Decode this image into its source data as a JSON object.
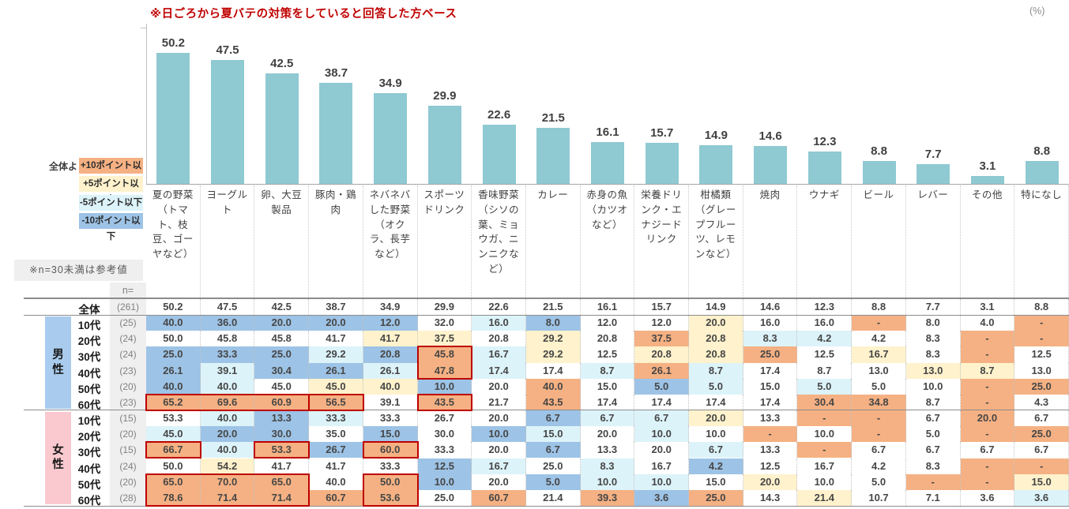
{
  "title": "※日ごろから夏バテの対策をしていると回答した方ベース",
  "unit_label": "(%)",
  "note": "※n=30未満は参考値",
  "n_header": "n=",
  "legend": {
    "prefix": "全体より",
    "items": [
      {
        "label": "+10ポイント以上",
        "color": "#F5B183"
      },
      {
        "label": "+5ポイント以上",
        "color": "#FFF2CC"
      },
      {
        "label": "-5ポイント以下",
        "color": "#DCF3F9"
      },
      {
        "label": "-10ポイント以下",
        "color": "#9DC3E6"
      }
    ]
  },
  "chart_data": {
    "type": "bar",
    "title": "※日ごろから夏バテの対策をしていると回答した方ベース",
    "unit": "%",
    "bar_color": "#8FC9D2",
    "ylim": [
      0,
      60
    ],
    "grid": false,
    "categories": [
      "夏の野菜（トマト、枝豆、ゴーヤなど）",
      "ヨーグルト",
      "卵、大豆製品",
      "豚肉・鶏肉",
      "ネバネバした野菜（オクラ、長芋など）",
      "スポーツドリンク",
      "香味野菜（シソの葉、ミョウガ、ニンニクなど）",
      "カレー",
      "赤身の魚（カツオなど）",
      "栄養ドリンク・エナジードリンク",
      "柑橘類（グレープフルーツ、レモンなど）",
      "焼肉",
      "ウナギ",
      "ビール",
      "レバー",
      "その他",
      "特になし"
    ],
    "values": [
      50.2,
      47.5,
      42.5,
      38.7,
      34.9,
      29.9,
      22.6,
      21.5,
      16.1,
      15.7,
      14.9,
      14.6,
      12.3,
      8.8,
      7.7,
      3.1,
      8.8
    ]
  },
  "table": {
    "cell_colors": {
      "w": "#FFFFFF",
      "o": "#F5B183",
      "y": "#FFF2CC",
      "c": "#DCF3F9",
      "b": "#9DC3E6"
    },
    "groups": [
      {
        "name": "男性",
        "color": "#A9CCEE"
      },
      {
        "name": "女性",
        "color": "#F9C9CF"
      }
    ],
    "rows": [
      {
        "group": "",
        "label": "全体",
        "n": "(261)",
        "values": [
          "50.2",
          "47.5",
          "42.5",
          "38.7",
          "34.9",
          "29.9",
          "22.6",
          "21.5",
          "16.1",
          "15.7",
          "14.9",
          "14.6",
          "12.3",
          "8.8",
          "7.7",
          "3.1",
          "8.8"
        ],
        "colors": [
          "w",
          "w",
          "w",
          "w",
          "w",
          "w",
          "w",
          "w",
          "w",
          "w",
          "w",
          "w",
          "w",
          "w",
          "w",
          "w",
          "w"
        ]
      },
      {
        "group": "男性",
        "label": "10代",
        "n": "(25)",
        "values": [
          "40.0",
          "36.0",
          "20.0",
          "20.0",
          "12.0",
          "32.0",
          "16.0",
          "8.0",
          "12.0",
          "12.0",
          "20.0",
          "16.0",
          "16.0",
          "-",
          "8.0",
          "4.0",
          "-"
        ],
        "colors": [
          "b",
          "b",
          "b",
          "b",
          "b",
          "w",
          "c",
          "b",
          "w",
          "w",
          "y",
          "w",
          "w",
          "o",
          "w",
          "w",
          "o"
        ]
      },
      {
        "group": "男性",
        "label": "20代",
        "n": "(24)",
        "values": [
          "50.0",
          "45.8",
          "45.8",
          "41.7",
          "41.7",
          "37.5",
          "20.8",
          "29.2",
          "20.8",
          "37.5",
          "20.8",
          "8.3",
          "4.2",
          "4.2",
          "8.3",
          "-",
          "-"
        ],
        "colors": [
          "w",
          "w",
          "w",
          "w",
          "y",
          "y",
          "w",
          "y",
          "w",
          "o",
          "y",
          "c",
          "c",
          "w",
          "w",
          "o",
          "o"
        ]
      },
      {
        "group": "男性",
        "label": "30代",
        "n": "(24)",
        "values": [
          "25.0",
          "33.3",
          "25.0",
          "29.2",
          "20.8",
          "45.8",
          "16.7",
          "29.2",
          "12.5",
          "20.8",
          "20.8",
          "25.0",
          "12.5",
          "16.7",
          "8.3",
          "-",
          "12.5"
        ],
        "colors": [
          "b",
          "b",
          "b",
          "c",
          "b",
          "o",
          "c",
          "y",
          "w",
          "y",
          "y",
          "o",
          "w",
          "y",
          "w",
          "o",
          "w"
        ]
      },
      {
        "group": "男性",
        "label": "40代",
        "n": "(23)",
        "values": [
          "26.1",
          "39.1",
          "30.4",
          "26.1",
          "26.1",
          "47.8",
          "17.4",
          "17.4",
          "8.7",
          "26.1",
          "8.7",
          "17.4",
          "8.7",
          "13.0",
          "13.0",
          "8.7",
          "13.0"
        ],
        "colors": [
          "b",
          "c",
          "b",
          "b",
          "c",
          "o",
          "c",
          "w",
          "c",
          "o",
          "c",
          "w",
          "w",
          "w",
          "y",
          "y",
          "w"
        ]
      },
      {
        "group": "男性",
        "label": "50代",
        "n": "(20)",
        "values": [
          "40.0",
          "40.0",
          "45.0",
          "45.0",
          "40.0",
          "10.0",
          "20.0",
          "40.0",
          "15.0",
          "5.0",
          "5.0",
          "15.0",
          "5.0",
          "5.0",
          "10.0",
          "-",
          "25.0"
        ],
        "colors": [
          "b",
          "c",
          "w",
          "y",
          "y",
          "b",
          "w",
          "o",
          "w",
          "b",
          "c",
          "w",
          "c",
          "w",
          "w",
          "o",
          "o"
        ]
      },
      {
        "group": "男性",
        "label": "60代",
        "n": "(23)",
        "values": [
          "65.2",
          "69.6",
          "60.9",
          "56.5",
          "39.1",
          "43.5",
          "21.7",
          "43.5",
          "17.4",
          "17.4",
          "17.4",
          "17.4",
          "30.4",
          "34.8",
          "8.7",
          "-",
          "4.3"
        ],
        "colors": [
          "o",
          "o",
          "o",
          "o",
          "w",
          "o",
          "w",
          "o",
          "w",
          "w",
          "w",
          "w",
          "o",
          "o",
          "w",
          "o",
          "w"
        ]
      },
      {
        "group": "女性",
        "label": "10代",
        "n": "(15)",
        "values": [
          "53.3",
          "40.0",
          "13.3",
          "33.3",
          "33.3",
          "26.7",
          "20.0",
          "6.7",
          "6.7",
          "6.7",
          "20.0",
          "13.3",
          "-",
          "-",
          "6.7",
          "20.0",
          "6.7"
        ],
        "colors": [
          "w",
          "c",
          "b",
          "c",
          "w",
          "w",
          "w",
          "b",
          "c",
          "c",
          "y",
          "w",
          "o",
          "o",
          "w",
          "o",
          "w"
        ]
      },
      {
        "group": "女性",
        "label": "20代",
        "n": "(20)",
        "values": [
          "45.0",
          "20.0",
          "30.0",
          "35.0",
          "15.0",
          "30.0",
          "10.0",
          "15.0",
          "20.0",
          "10.0",
          "10.0",
          "-",
          "10.0",
          "-",
          "5.0",
          "-",
          "25.0"
        ],
        "colors": [
          "c",
          "b",
          "b",
          "w",
          "b",
          "w",
          "b",
          "c",
          "w",
          "c",
          "w",
          "o",
          "w",
          "o",
          "w",
          "o",
          "o"
        ]
      },
      {
        "group": "女性",
        "label": "30代",
        "n": "(15)",
        "values": [
          "66.7",
          "40.0",
          "53.3",
          "26.7",
          "60.0",
          "33.3",
          "20.0",
          "6.7",
          "13.3",
          "20.0",
          "6.7",
          "13.3",
          "-",
          "6.7",
          "6.7",
          "6.7",
          "6.7"
        ],
        "colors": [
          "o",
          "c",
          "o",
          "b",
          "o",
          "w",
          "w",
          "b",
          "w",
          "w",
          "c",
          "w",
          "o",
          "w",
          "w",
          "w",
          "w"
        ]
      },
      {
        "group": "女性",
        "label": "40代",
        "n": "(24)",
        "values": [
          "50.0",
          "54.2",
          "41.7",
          "41.7",
          "33.3",
          "12.5",
          "16.7",
          "25.0",
          "8.3",
          "16.7",
          "4.2",
          "12.5",
          "16.7",
          "4.2",
          "8.3",
          "-",
          "-"
        ],
        "colors": [
          "w",
          "y",
          "w",
          "w",
          "w",
          "b",
          "c",
          "w",
          "c",
          "w",
          "b",
          "w",
          "w",
          "w",
          "w",
          "o",
          "o"
        ]
      },
      {
        "group": "女性",
        "label": "50代",
        "n": "(20)",
        "values": [
          "65.0",
          "70.0",
          "65.0",
          "40.0",
          "50.0",
          "10.0",
          "20.0",
          "5.0",
          "10.0",
          "10.0",
          "15.0",
          "20.0",
          "10.0",
          "5.0",
          "-",
          "-",
          "15.0"
        ],
        "colors": [
          "o",
          "o",
          "o",
          "w",
          "o",
          "b",
          "w",
          "b",
          "c",
          "c",
          "w",
          "y",
          "w",
          "w",
          "o",
          "o",
          "y"
        ]
      },
      {
        "group": "女性",
        "label": "60代",
        "n": "(28)",
        "values": [
          "78.6",
          "71.4",
          "71.4",
          "60.7",
          "53.6",
          "25.0",
          "60.7",
          "21.4",
          "39.3",
          "3.6",
          "25.0",
          "14.3",
          "21.4",
          "10.7",
          "7.1",
          "3.6",
          "3.6"
        ],
        "colors": [
          "o",
          "o",
          "o",
          "o",
          "o",
          "w",
          "o",
          "w",
          "o",
          "b",
          "o",
          "w",
          "y",
          "w",
          "w",
          "w",
          "c"
        ]
      }
    ],
    "highlight_boxes": [
      {
        "row_start": 3,
        "row_end": 4,
        "col_start": 5,
        "col_end": 5
      },
      {
        "row_start": 6,
        "row_end": 6,
        "col_start": 0,
        "col_end": 2
      },
      {
        "row_start": 6,
        "row_end": 6,
        "col_start": 3,
        "col_end": 3
      },
      {
        "row_start": 6,
        "row_end": 6,
        "col_start": 5,
        "col_end": 5
      },
      {
        "row_start": 9,
        "row_end": 9,
        "col_start": 0,
        "col_end": 0
      },
      {
        "row_start": 9,
        "row_end": 9,
        "col_start": 2,
        "col_end": 2
      },
      {
        "row_start": 9,
        "row_end": 9,
        "col_start": 4,
        "col_end": 4
      },
      {
        "row_start": 11,
        "row_end": 12,
        "col_start": 0,
        "col_end": 2
      },
      {
        "row_start": 11,
        "row_end": 12,
        "col_start": 4,
        "col_end": 4
      }
    ]
  }
}
